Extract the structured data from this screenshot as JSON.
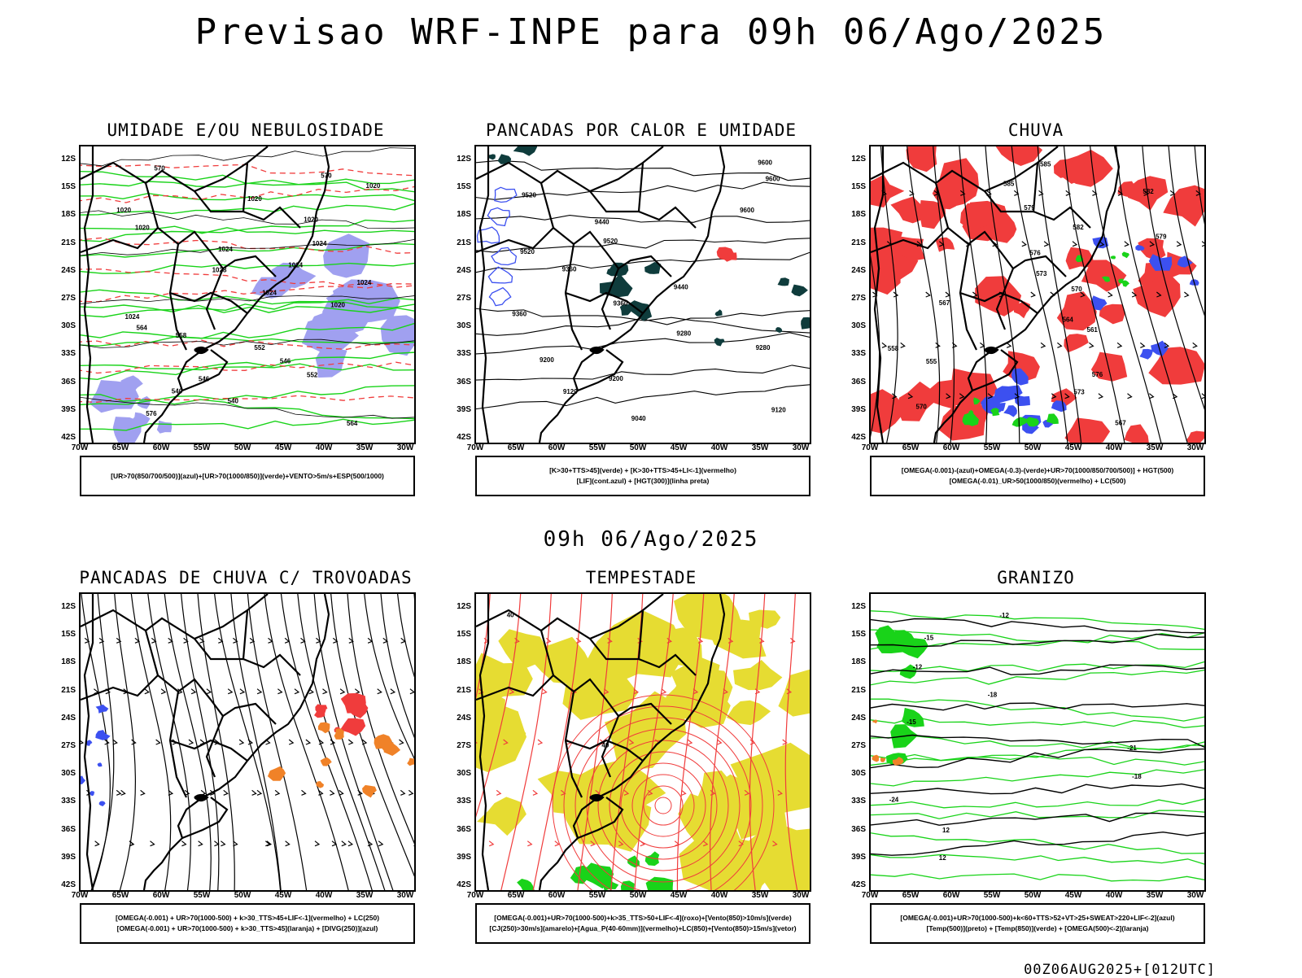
{
  "title": "Previsao WRF-INPE  para 09h 06/Ago/2025",
  "mid_date": "09h 06/Ago/2025",
  "footer": "00Z06AUG2025+[012UTC]",
  "lat_ticks": [
    "12S",
    "15S",
    "18S",
    "21S",
    "24S",
    "27S",
    "30S",
    "33S",
    "36S",
    "39S",
    "42S"
  ],
  "lon_ticks": [
    "70W",
    "65W",
    "60W",
    "55W",
    "50W",
    "45W",
    "40W",
    "35W",
    "30W"
  ],
  "colors": {
    "green": "#19d319",
    "red": "#f03c3c",
    "blue": "#3c50f0",
    "dark_teal": "#0f3c3c",
    "yellow": "#e6dc32",
    "orange": "#f08228",
    "lavender": "#a0a0f0"
  },
  "panels": [
    {
      "title": "UMIDADE E/OU NEBULOSIDADE",
      "legend": [
        "[UR>70(850/700/500)](azul)+[UR>70(1000/850)](verde)+VENTO>5m/s+ESP(500/1000)"
      ],
      "contour_labels": [
        "570",
        "570",
        "1020",
        "1020",
        "1020",
        "1020",
        "1020",
        "1024",
        "1024",
        "1024",
        "1028",
        "1024",
        "1024",
        "1020",
        "1024",
        "564",
        "558",
        "552",
        "546",
        "552",
        "546",
        "540",
        "540",
        "576",
        "564"
      ]
    },
    {
      "title": "PANCADAS POR CALOR E UMIDADE",
      "legend": [
        "[K>30+TTS>45](verde) + [K>30+TTS>45+LI<-1](vermelho)",
        "[LIF](cont.azul) + [HGT(300)](linha preta)"
      ],
      "contour_labels": [
        "9600",
        "9600",
        "9520",
        "9600",
        "9440",
        "9520",
        "9520",
        "9360",
        "9440",
        "9360",
        "9360",
        "9280",
        "9280",
        "9200",
        "9200",
        "9120",
        "9120",
        "9040"
      ]
    },
    {
      "title": "CHUVA",
      "legend": [
        "[OMEGA(-0.001)-(azul)+OMEGA(-0.3)-(verde)+UR>70(1000/850/700/500)] + HGT(500)",
        "[OMEGA(-0.01)_UR>50(1000/850)(vermelho) + LC(500)"
      ],
      "contour_labels": [
        "585",
        "585",
        "582",
        "579",
        "582",
        "579",
        "576",
        "573",
        "570",
        "567",
        "564",
        "561",
        "558",
        "555",
        "576",
        "573",
        "570",
        "567"
      ]
    },
    {
      "title": "PANCADAS DE CHUVA C/ TROVOADAS",
      "legend": [
        "[OMEGA(-0.001) + UR>70(1000-500) + k>30_TTS>45+LIF<-1](vermelho) + LC(250)",
        "[OMEGA(-0.001) + UR>70(1000-500) + k>30_TTS>45](laranja) + [DIVG(250)](azul)"
      ],
      "contour_labels": []
    },
    {
      "title": "TEMPESTADE",
      "legend": [
        "[OMEGA(-0.001)+UR>70(1000-500)+k>35_TTS>50+LIF<-4](roxo)+[Vento(850)>10m/s](verde)",
        "[CJ(250)>30m/s](amarelo)+[Agua_P(40-60mm)](vermelho)+LC(850)+[Vento(850)>15m/s](vetor)"
      ],
      "contour_labels": [
        "40",
        "40"
      ]
    },
    {
      "title": "GRANIZO",
      "legend": [
        "[OMEGA(-0.001)+UR>70(1000-500)+k<60+TTS>52+VT>25+SWEAT>220+LIF<-2](azul)",
        "[Temp(500)](preto) + [Temp(850)](verde) + [OMEGA(500)<-2](laranja)"
      ],
      "contour_labels": [
        "-12",
        "-15",
        "-12",
        "-18",
        "-15",
        "-21",
        "-18",
        "-24",
        "12",
        "12"
      ]
    }
  ]
}
